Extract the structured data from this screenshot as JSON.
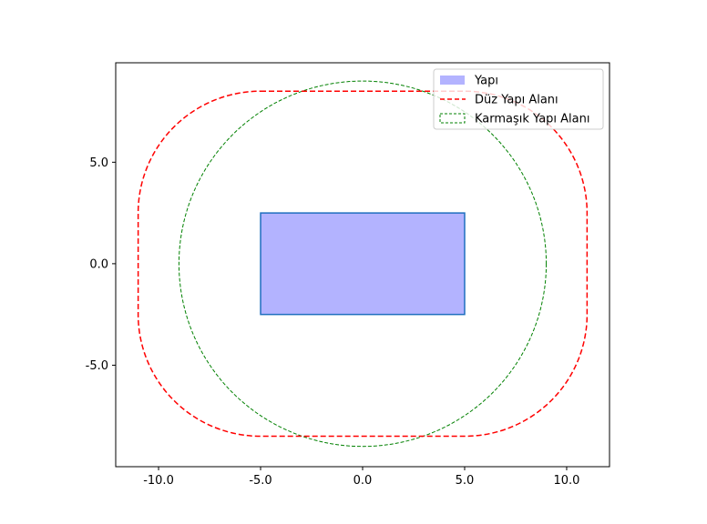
{
  "chart_data": {
    "type": "line",
    "title": "",
    "xlabel": "",
    "ylabel": "",
    "xlim": [
      -12.1,
      12.1
    ],
    "ylim": [
      -10.0,
      9.9
    ],
    "xticks": [
      -10.0,
      -5.0,
      0.0,
      5.0,
      10.0
    ],
    "xtick_labels": [
      "-10.0",
      "-5.0",
      "0.0",
      "5.0",
      "10.0"
    ],
    "yticks": [
      -5.0,
      0.0,
      5.0
    ],
    "ytick_labels": [
      "-5.0",
      "0.0",
      "5.0"
    ],
    "grid": false,
    "legend_position": "top-right",
    "series": [
      {
        "name": "Yapı",
        "kind": "filled-rectangle",
        "x": [
          -5.0,
          5.0
        ],
        "y": [
          -2.5,
          2.5
        ],
        "fill_color": "#b3b3ff",
        "edge_color": "#1f6fbf"
      },
      {
        "name": "Düz Yapı Alanı",
        "kind": "rounded-rectangle-dashed",
        "x": [
          -11.0,
          11.0
        ],
        "y": [
          -8.5,
          8.5
        ],
        "corner_radius": 6.0,
        "color": "#ff0000"
      },
      {
        "name": "Karmaşık Yapı Alanı",
        "kind": "ellipse-dashed",
        "center": [
          0.0,
          0.0
        ],
        "rx": 9.0,
        "ry": 9.0,
        "color": "#008000"
      }
    ]
  }
}
